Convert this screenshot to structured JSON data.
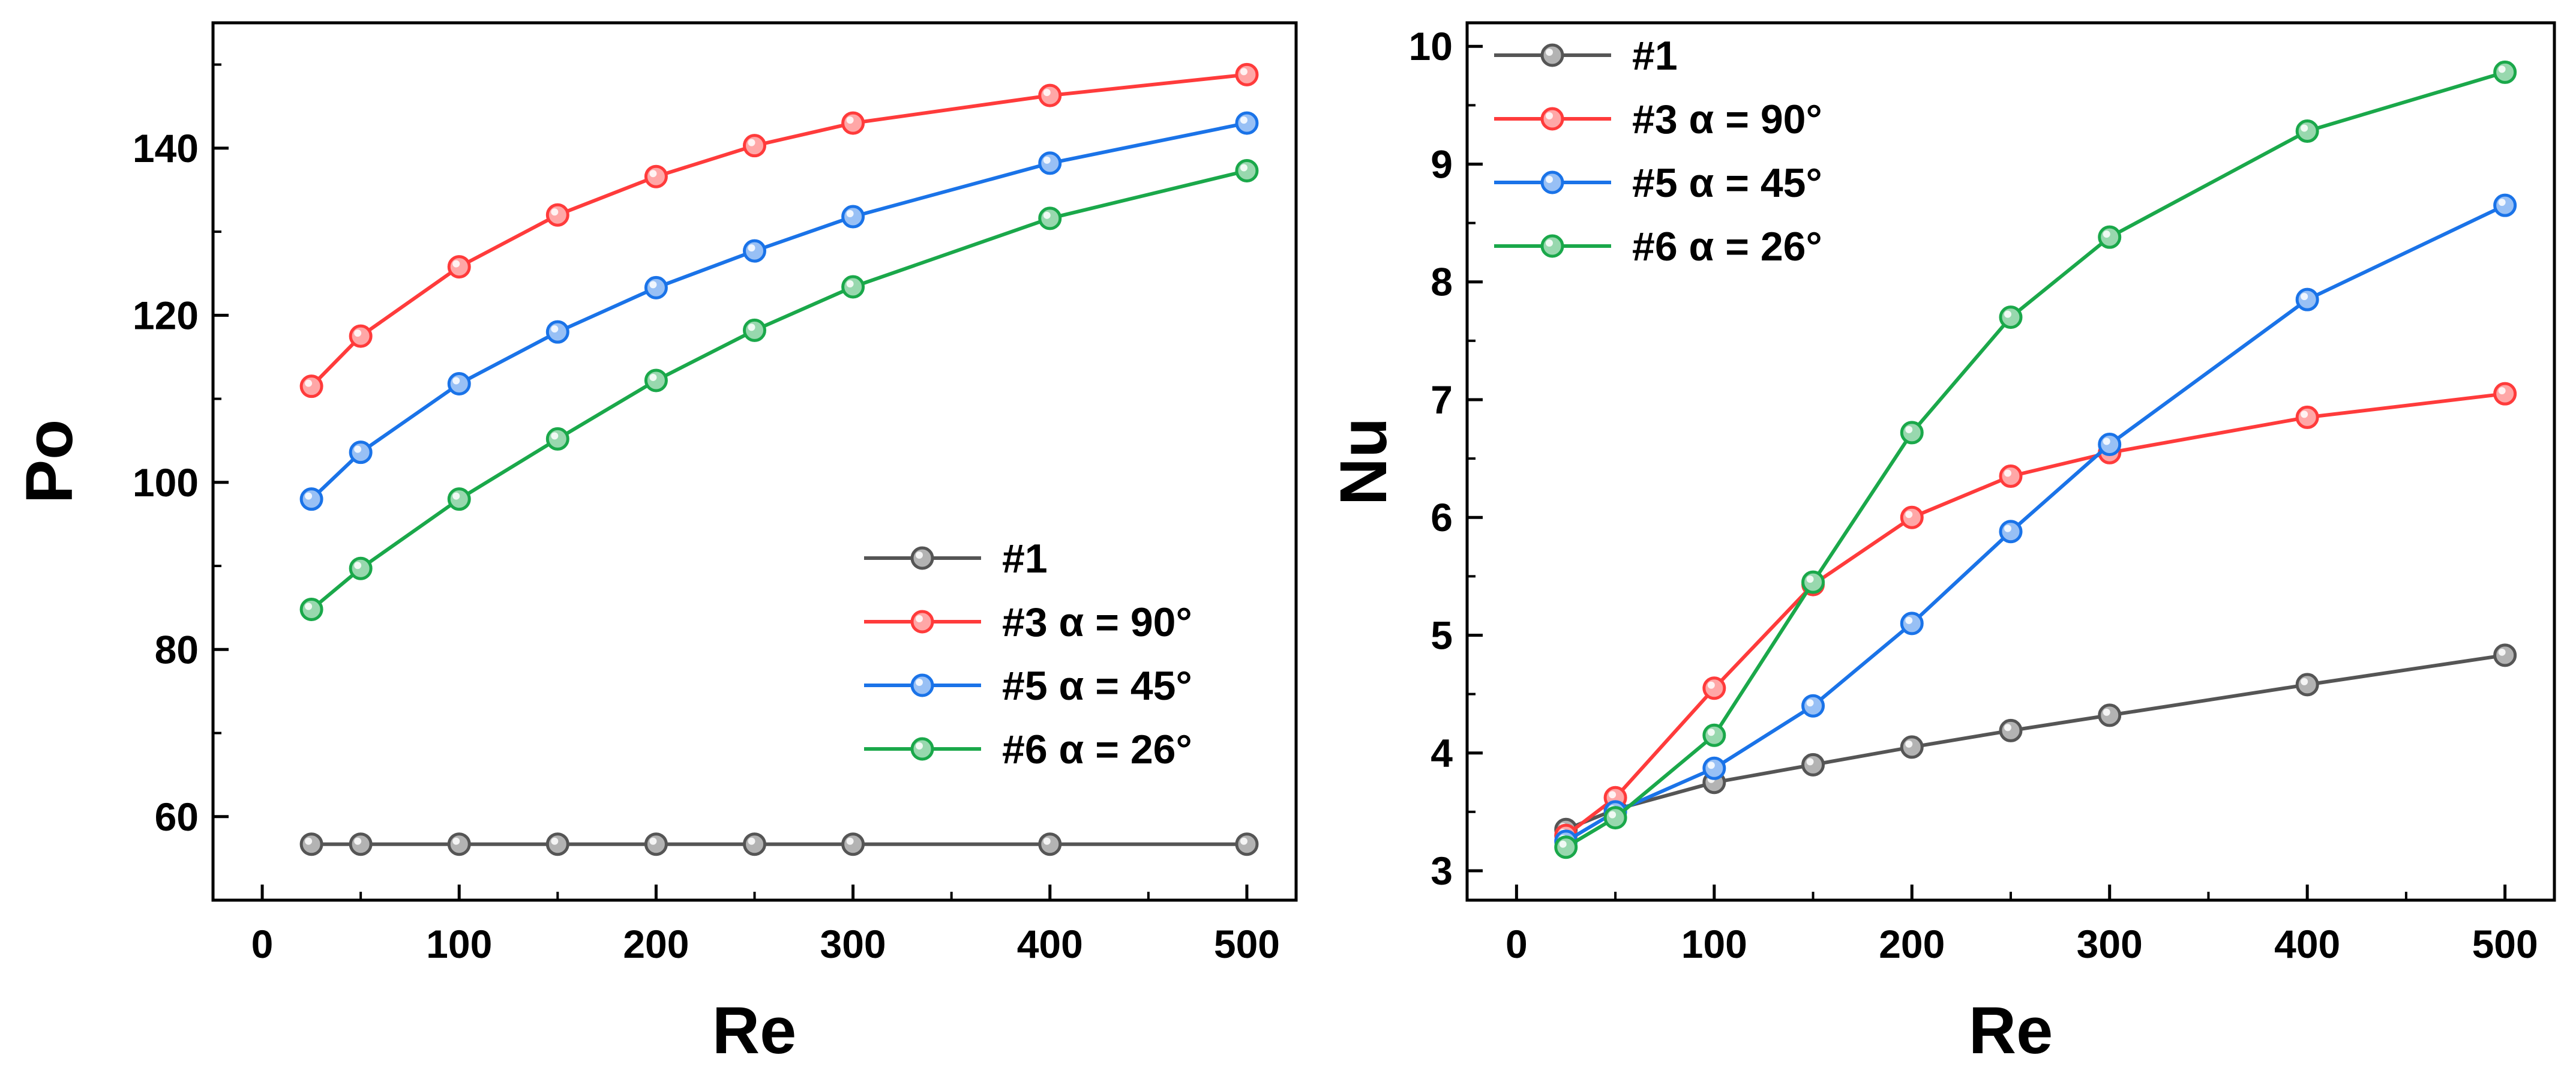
{
  "chart_data": [
    {
      "type": "line",
      "name": "po-chart",
      "xlabel": "Re",
      "ylabel": "Po",
      "xlim": [
        -25,
        525
      ],
      "ylim": [
        50,
        155
      ],
      "xticks": [
        0,
        100,
        200,
        300,
        400,
        500
      ],
      "yticks": [
        60,
        80,
        100,
        120,
        140
      ],
      "x": [
        25,
        50,
        100,
        150,
        200,
        250,
        300,
        400,
        500
      ],
      "legend_position": "bottom-right",
      "series": [
        {
          "name": "#1",
          "color": "#555555",
          "values": [
            56.7,
            56.7,
            56.7,
            56.7,
            56.7,
            56.7,
            56.7,
            56.7,
            56.7
          ]
        },
        {
          "name": "#3 α = 90°",
          "color": "#ff3b3b",
          "values": [
            111.5,
            117.5,
            125.8,
            132.0,
            136.6,
            140.3,
            143.0,
            146.3,
            148.8
          ]
        },
        {
          "name": "#5 α = 45°",
          "color": "#1a73e8",
          "values": [
            98.0,
            103.6,
            111.8,
            118.0,
            123.3,
            127.7,
            131.8,
            138.2,
            143.0
          ]
        },
        {
          "name": "#6 α = 26°",
          "color": "#1aa84a",
          "values": [
            84.8,
            89.7,
            98.0,
            105.2,
            112.2,
            118.2,
            123.4,
            131.6,
            137.3
          ]
        }
      ]
    },
    {
      "type": "line",
      "name": "nu-chart",
      "xlabel": "Re",
      "ylabel": "Nu",
      "xlim": [
        -25,
        525
      ],
      "ylim": [
        2.75,
        10.2
      ],
      "xticks": [
        0,
        100,
        200,
        300,
        400,
        500
      ],
      "yticks": [
        3,
        4,
        5,
        6,
        7,
        8,
        9,
        10
      ],
      "x": [
        25,
        50,
        100,
        150,
        200,
        250,
        300,
        400,
        500
      ],
      "legend_position": "top-left",
      "series": [
        {
          "name": "#1",
          "color": "#555555",
          "values": [
            3.35,
            3.52,
            3.75,
            3.9,
            4.05,
            4.19,
            4.32,
            4.58,
            4.83
          ]
        },
        {
          "name": "#3 α = 90°",
          "color": "#ff3b3b",
          "values": [
            3.3,
            3.62,
            4.55,
            5.43,
            6.0,
            6.35,
            6.55,
            6.85,
            7.05
          ]
        },
        {
          "name": "#5 α = 45°",
          "color": "#1a73e8",
          "values": [
            3.25,
            3.5,
            3.87,
            4.4,
            5.1,
            5.88,
            6.62,
            7.85,
            8.65
          ]
        },
        {
          "name": "#6 α = 26°",
          "color": "#1aa84a",
          "values": [
            3.2,
            3.45,
            4.15,
            5.45,
            6.72,
            7.7,
            8.38,
            9.28,
            9.78
          ]
        }
      ]
    }
  ]
}
